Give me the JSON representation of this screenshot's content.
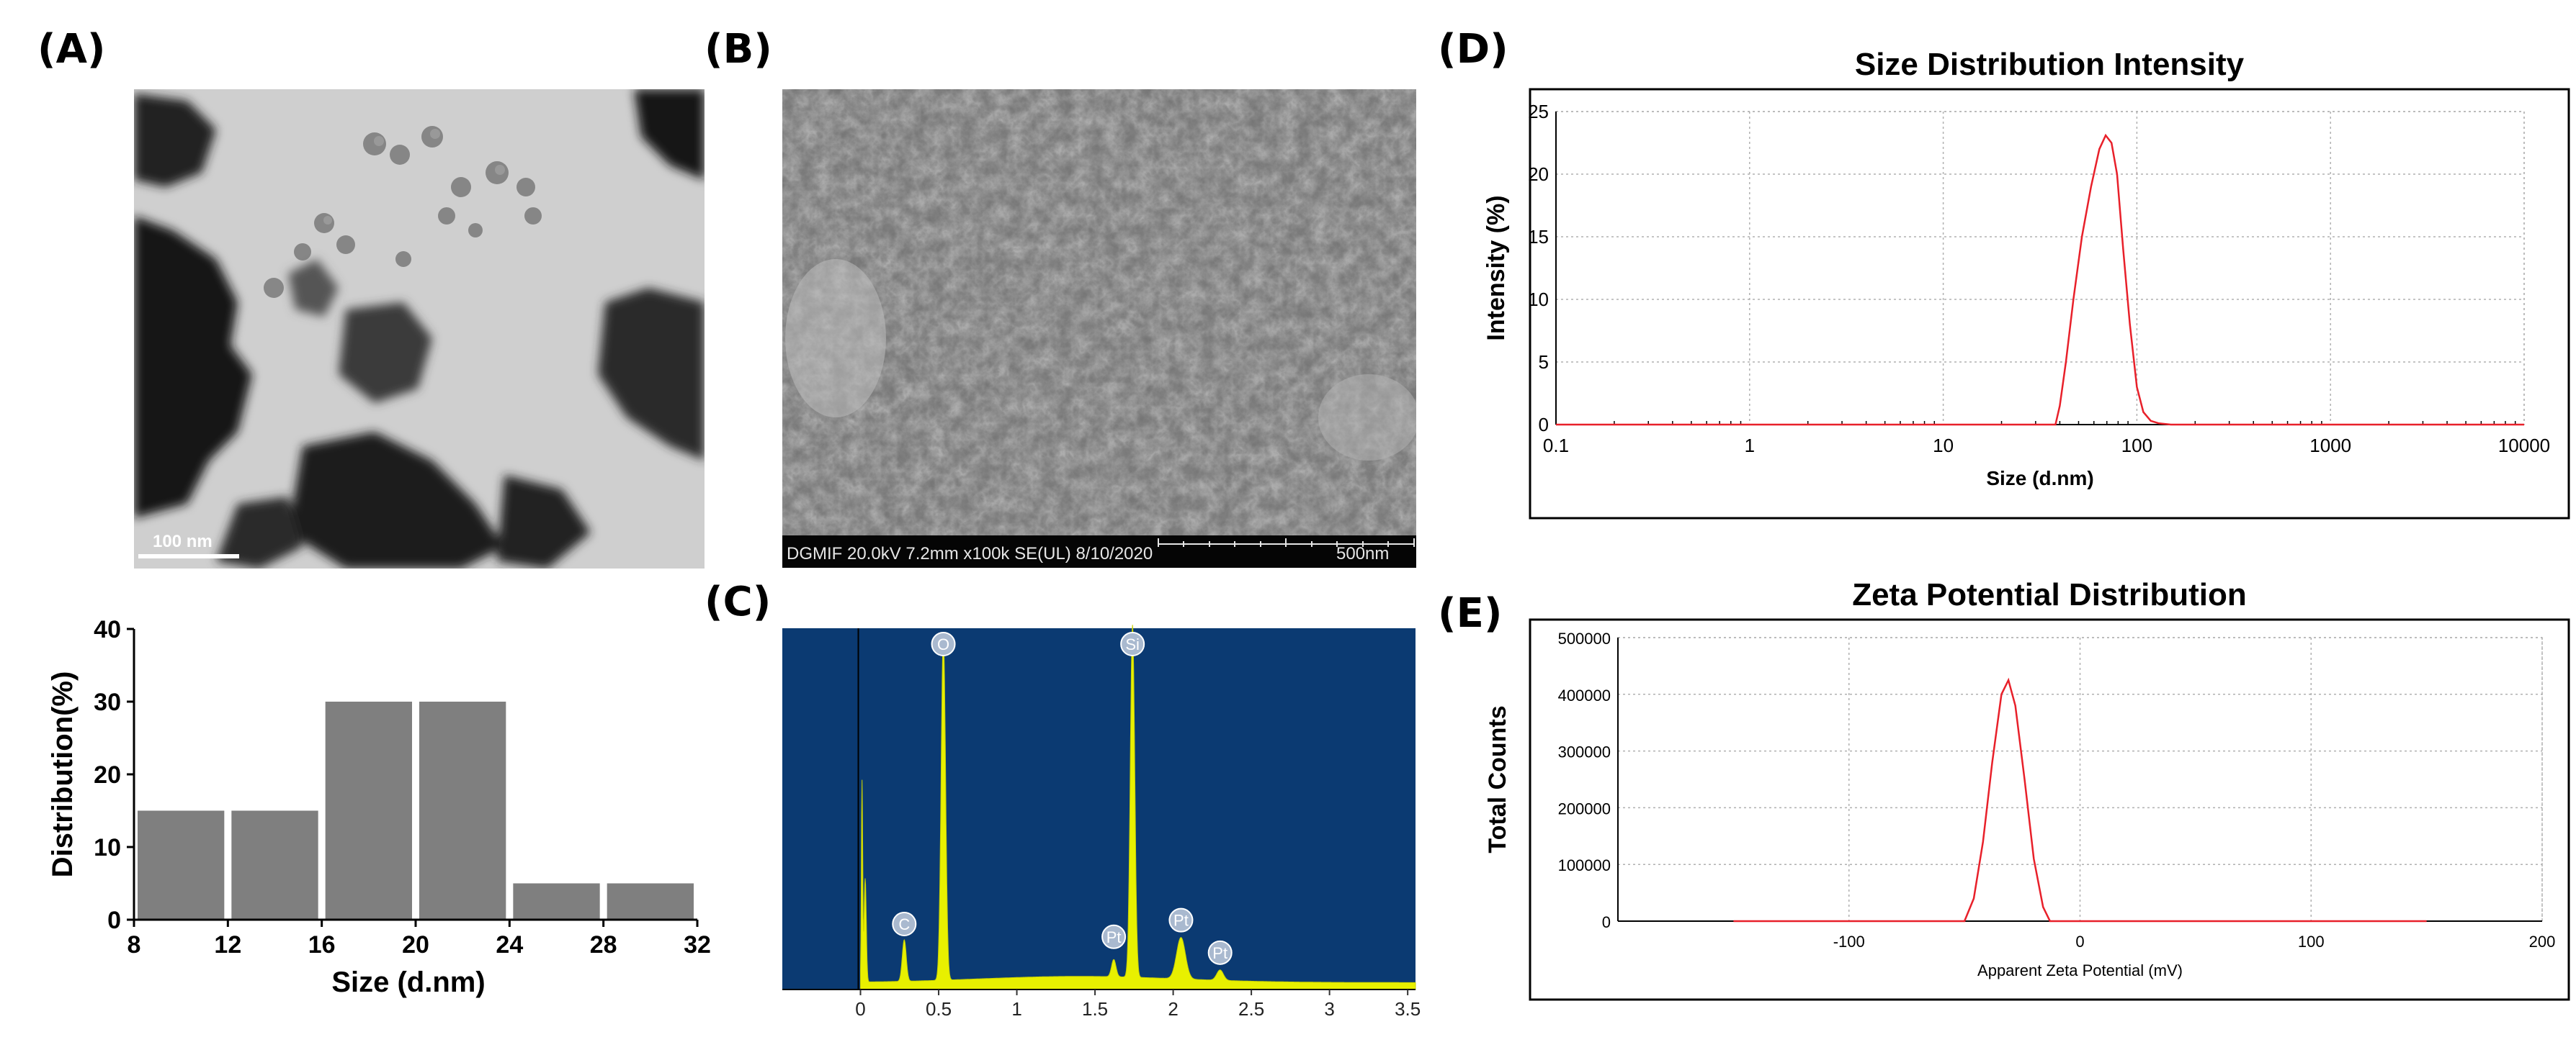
{
  "panels": {
    "a": "(A)",
    "b": "(B)",
    "c": "(C)",
    "d": "(D)",
    "e": "(E)"
  },
  "tem": {
    "scale_text": "100 nm"
  },
  "sem": {
    "info_text": "DGMIF 20.0kV 7.2mm x100k SE(UL) 8/10/2020",
    "scale_text": "500nm"
  },
  "chart_data": [
    {
      "id": "histogram",
      "type": "bar",
      "title": "",
      "xlabel": "Size (d.nm)",
      "ylabel": "Distribution(%)",
      "bin_edges": [
        8,
        12,
        16,
        20,
        24,
        28,
        32
      ],
      "values": [
        15,
        15,
        30,
        30,
        5,
        5
      ],
      "xlim": [
        8,
        32
      ],
      "ylim": [
        0,
        40
      ],
      "yticks": [
        0,
        10,
        20,
        30,
        40
      ],
      "xticks": [
        8,
        12,
        16,
        20,
        24,
        28,
        32
      ],
      "bar_color": "#7f7f7f"
    },
    {
      "id": "eds",
      "type": "line",
      "title": "",
      "xlabel": "",
      "ylabel": "",
      "xlim": [
        -0.5,
        3.55
      ],
      "xticks": [
        0,
        0.5,
        1,
        1.5,
        2,
        2.5,
        3,
        3.5
      ],
      "xtick_labels": [
        "0",
        "0.5",
        "1",
        "1.5",
        "2",
        "2.5",
        "3",
        "3.5"
      ],
      "peaks": [
        {
          "label": "C",
          "x": 0.28
        },
        {
          "label": "O",
          "x": 0.53
        },
        {
          "label": "Pt",
          "x": 1.62
        },
        {
          "label": "Si",
          "x": 1.74
        },
        {
          "label": "Pt",
          "x": 2.05
        },
        {
          "label": "Pt",
          "x": 2.3
        }
      ],
      "background_color": "#0b3a72",
      "spectrum_color": "#e8f000"
    },
    {
      "id": "dls_size",
      "type": "line",
      "title": "Size Distribution Intensity",
      "xlabel": "Size (d.nm)",
      "ylabel": "Intensity (%)",
      "xscale": "log",
      "xlim": [
        0.1,
        10000
      ],
      "ylim": [
        0,
        25
      ],
      "xticks": [
        0.1,
        1,
        10,
        100,
        1000,
        10000
      ],
      "xtick_labels": [
        "0.1",
        "1",
        "10",
        "100",
        "1000",
        "10000"
      ],
      "yticks": [
        0,
        5,
        10,
        15,
        20,
        25
      ],
      "grid": true,
      "series": [
        {
          "color": "#e8202a",
          "x": [
            0.1,
            38,
            40,
            43,
            47,
            52,
            58,
            64,
            69,
            74,
            79,
            85,
            92,
            100,
            108,
            118,
            130,
            150,
            170,
            200,
            10000
          ],
          "y": [
            0,
            0,
            1.5,
            5,
            10,
            15,
            19,
            22,
            23.1,
            22.5,
            20,
            14,
            8,
            3,
            1,
            0.3,
            0.1,
            0,
            0,
            0,
            0
          ]
        }
      ]
    },
    {
      "id": "zeta",
      "type": "line",
      "title": "Zeta Potential Distribution",
      "xlabel": "Apparent Zeta Potential (mV)",
      "ylabel": "Total Counts",
      "xlim": [
        -200,
        200
      ],
      "ylim": [
        0,
        500000
      ],
      "xticks": [
        -100,
        0,
        100,
        200
      ],
      "yticks": [
        0,
        100000,
        200000,
        300000,
        400000,
        500000
      ],
      "grid": true,
      "series": [
        {
          "color": "#e8202a",
          "x": [
            -150,
            -50,
            -46,
            -42,
            -38,
            -34,
            -31,
            -28,
            -24,
            -20,
            -16,
            -13,
            150
          ],
          "y": [
            0,
            0,
            40000,
            140000,
            280000,
            400000,
            425000,
            380000,
            250000,
            110000,
            25000,
            0,
            0
          ]
        }
      ]
    }
  ]
}
